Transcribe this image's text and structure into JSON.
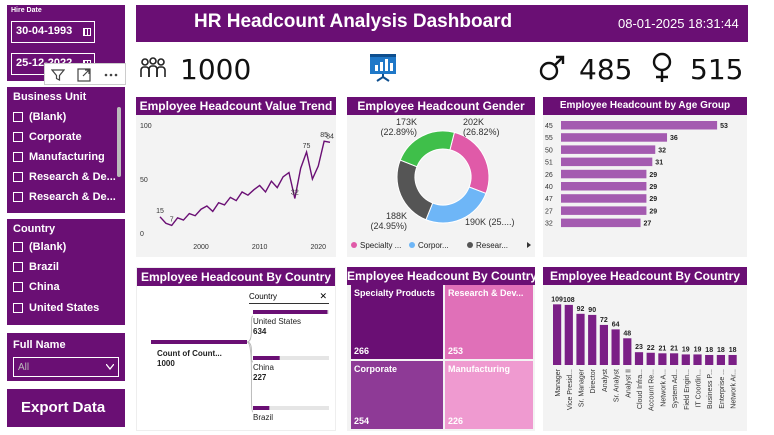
{
  "hire_date": {
    "title": "Hire Date",
    "start": "30-04-1993",
    "end": "25-12-2022"
  },
  "business_unit": {
    "title": "Business Unit",
    "items": [
      "(Blank)",
      "Corporate",
      "Manufacturing",
      "Research & De...",
      "Research & De..."
    ]
  },
  "country": {
    "title": "Country",
    "items": [
      "(Blank)",
      "Brazil",
      "China",
      "United States"
    ]
  },
  "full_name": {
    "title": "Full Name",
    "selected": "All"
  },
  "export_label": "Export Data",
  "header": {
    "title": "HR Headcount Analysis Dashboard",
    "datetime": "08-01-2025 18:31:44"
  },
  "kpi": {
    "total": "1000",
    "male": "485",
    "female": "515"
  },
  "trend": {
    "title": "Employee Headcount Value Trend",
    "chart_data": {
      "type": "line",
      "x": [
        1993,
        1994,
        1995,
        1996,
        1997,
        1998,
        1999,
        2000,
        2001,
        2002,
        2003,
        2004,
        2005,
        2006,
        2007,
        2008,
        2009,
        2010,
        2011,
        2012,
        2013,
        2014,
        2015,
        2016,
        2017,
        2018,
        2019,
        2020,
        2021,
        2022
      ],
      "values": [
        15,
        9,
        7,
        14,
        12,
        18,
        16,
        22,
        25,
        20,
        28,
        26,
        33,
        30,
        38,
        35,
        40,
        44,
        38,
        48,
        42,
        52,
        56,
        32,
        60,
        75,
        50,
        62,
        85,
        84
      ],
      "ylim": [
        0,
        100
      ],
      "yticks": [
        "100",
        "50",
        "0"
      ],
      "xticks": [
        "2000",
        "2010",
        "2020"
      ],
      "labels": [
        {
          "i": 0,
          "v": "15"
        },
        {
          "i": 2,
          "v": "7"
        },
        {
          "i": 23,
          "v": "32"
        },
        {
          "i": 25,
          "v": "75"
        },
        {
          "i": 28,
          "v": "85"
        },
        {
          "i": 29,
          "v": "84"
        }
      ]
    }
  },
  "gender": {
    "title": "Employee Headcount Gender",
    "chart_data": {
      "type": "pie",
      "slices": [
        {
          "name": "Specialty ...",
          "value": 202,
          "color": "#e05aa8",
          "label": "202K",
          "pct": "(26.82%)"
        },
        {
          "name": "Corpor...",
          "value": 190,
          "color": "#6eb6f7",
          "label": "190K (25....)",
          "pct": ""
        },
        {
          "name": "Resear...",
          "value": 188,
          "color": "#555555",
          "label": "188K",
          "pct": "(24.95%)"
        },
        {
          "name": "",
          "value": 173,
          "color": "#3fbf4a",
          "label": "173K",
          "pct": "(22.89%)"
        }
      ]
    }
  },
  "age": {
    "title": "Employee Headcount by Age Group",
    "chart_data": {
      "type": "bar",
      "categories": [
        "45",
        "55",
        "50",
        "51",
        "26",
        "40",
        "47",
        "27",
        "32"
      ],
      "values": [
        53,
        36,
        32,
        31,
        29,
        29,
        29,
        29,
        27
      ],
      "xlim": [
        0,
        55
      ]
    }
  },
  "decomp": {
    "title": "Employee Headcount By Country",
    "filter_label": "Country",
    "root_label": "Count of Count...",
    "root_value": "1000",
    "nodes": [
      {
        "name": "United States",
        "value": "634",
        "frac": 0.634
      },
      {
        "name": "China",
        "value": "227",
        "frac": 0.227
      },
      {
        "name": "Brazil",
        "value": "",
        "frac": 0.139
      }
    ]
  },
  "treemap": {
    "title": "Employee Headcount By Country",
    "cells": [
      {
        "name": "Specialty Products",
        "value": "266",
        "color": "#6a0f74"
      },
      {
        "name": "Research & Dev...",
        "value": "253",
        "color": "#e070b8"
      },
      {
        "name": "Corporate",
        "value": "254",
        "color": "#8e3a96"
      },
      {
        "name": "Manufacturing",
        "value": "226",
        "color": "#ef9ad0"
      }
    ]
  },
  "jobs": {
    "title": "Employee Headcount By Country",
    "chart_data": {
      "type": "bar",
      "categories": [
        "Manager",
        "Vice Presid...",
        "Sr. Manager",
        "Director",
        "Analyst",
        "Sr. Analyst",
        "Analyst II",
        "Cloud Infra...",
        "Account Re...",
        "Network A...",
        "System Ad...",
        "Field Engin...",
        "IT Coordin...",
        "Business P...",
        "Enterprise ...",
        "Network Ar..."
      ],
      "values": [
        109,
        108,
        92,
        90,
        72,
        64,
        48,
        23,
        22,
        21,
        21,
        19,
        19,
        18,
        18,
        18
      ],
      "ylim": [
        0,
        115
      ]
    }
  }
}
